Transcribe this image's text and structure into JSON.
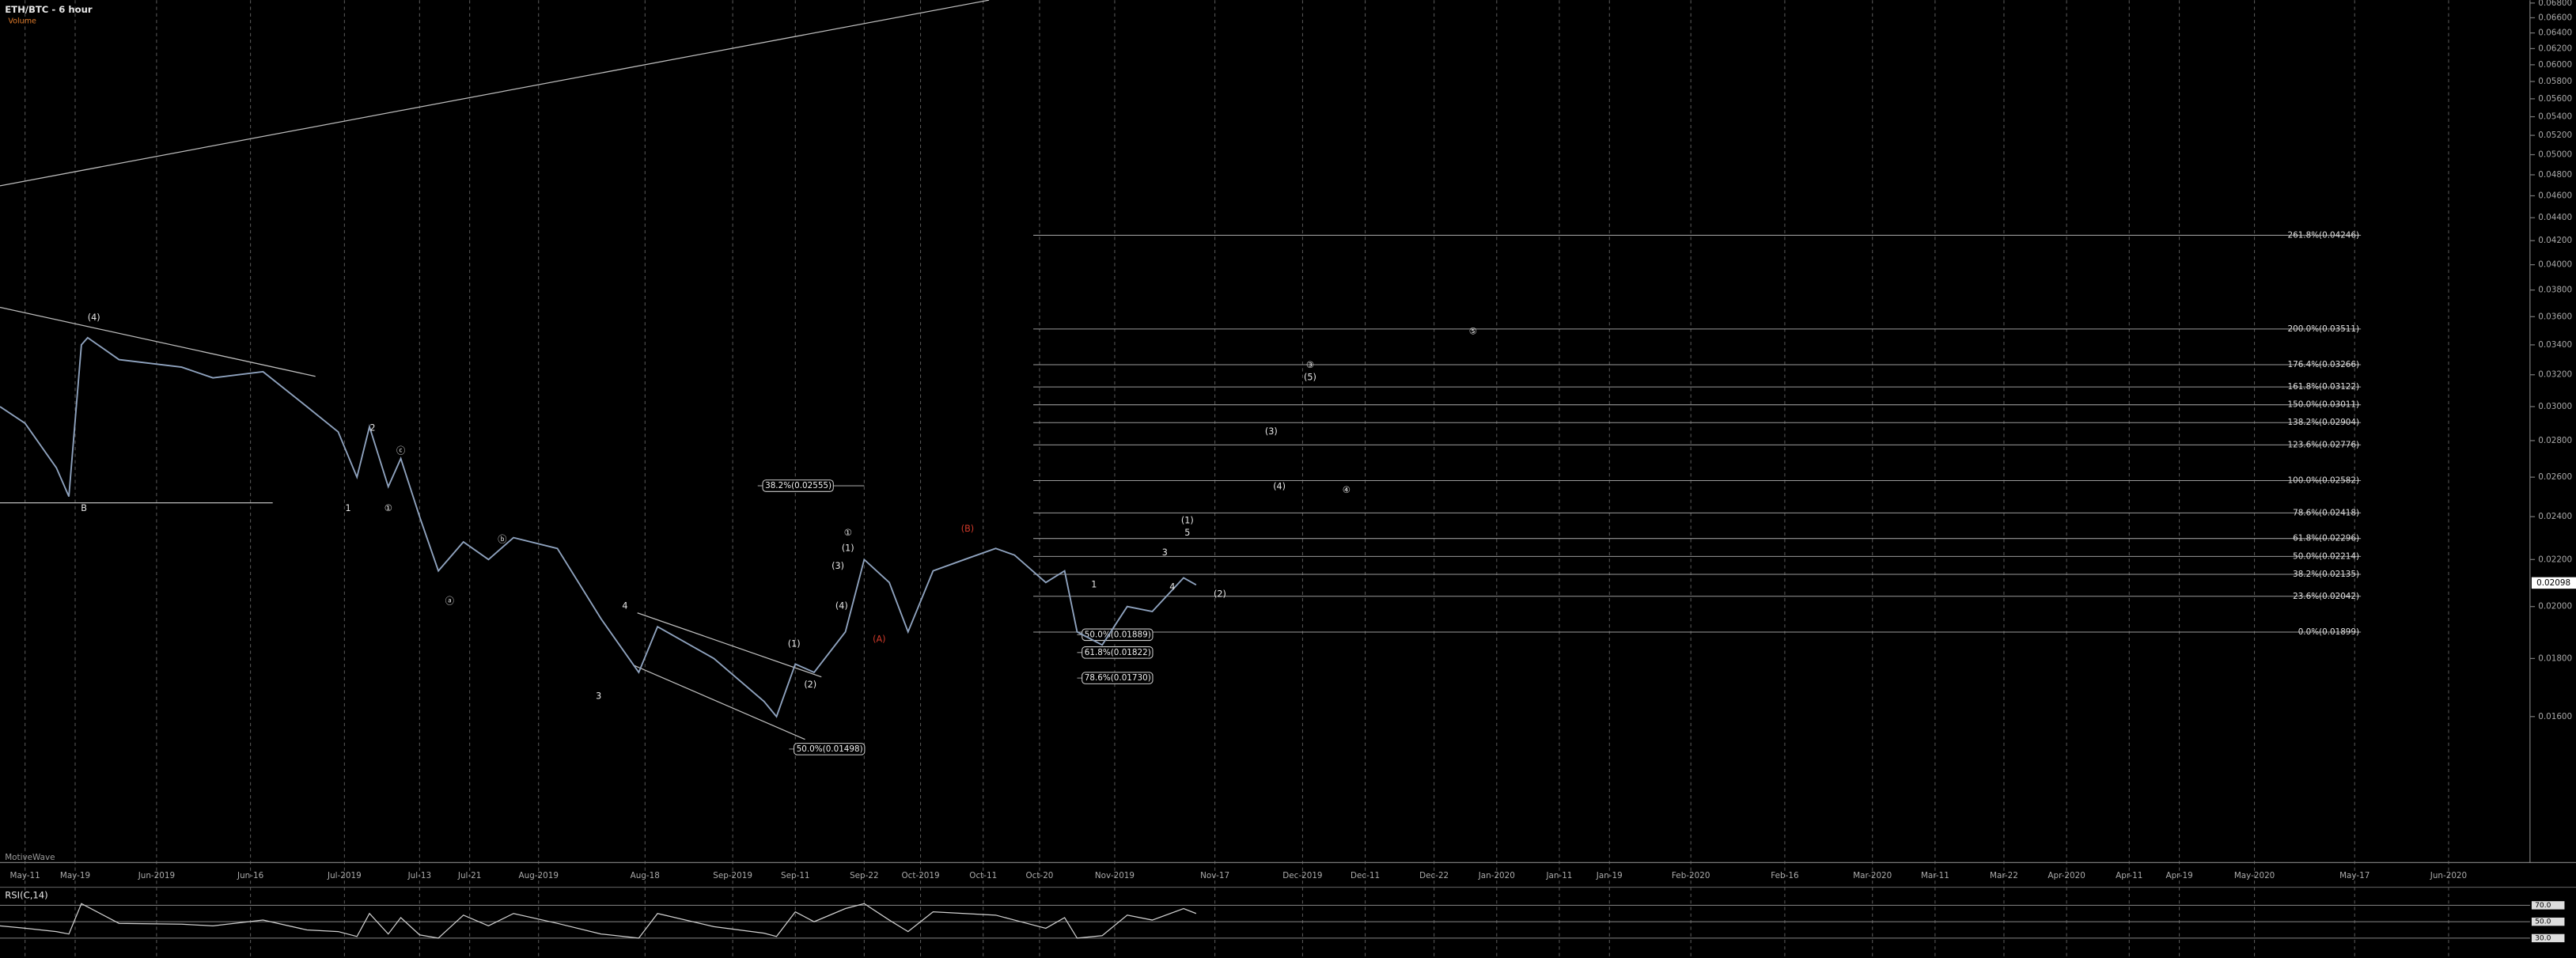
{
  "chart_data": {
    "type": "line",
    "title": "ETH/BTC - 6 hour",
    "subtitle": "Volume",
    "watermark": "MotiveWave",
    "log_scale": true,
    "grid": "x",
    "xlim": [
      -4,
      400
    ],
    "xticks": [
      {
        "value": 0,
        "label": "May-11"
      },
      {
        "value": 8,
        "label": "May-19"
      },
      {
        "value": 21,
        "label": "Jun-2019"
      },
      {
        "value": 36,
        "label": "Jun-16"
      },
      {
        "value": 51,
        "label": "Jul-2019"
      },
      {
        "value": 63,
        "label": "Jul-13"
      },
      {
        "value": 71,
        "label": "Jul-21"
      },
      {
        "value": 82,
        "label": "Aug-2019"
      },
      {
        "value": 99,
        "label": "Aug-18"
      },
      {
        "value": 113,
        "label": "Sep-2019"
      },
      {
        "value": 123,
        "label": "Sep-11"
      },
      {
        "value": 134,
        "label": "Sep-22"
      },
      {
        "value": 143,
        "label": "Oct-2019"
      },
      {
        "value": 153,
        "label": "Oct-11"
      },
      {
        "value": 162,
        "label": "Oct-20"
      },
      {
        "value": 174,
        "label": "Nov-2019"
      },
      {
        "value": 190,
        "label": "Nov-17"
      },
      {
        "value": 204,
        "label": "Dec-2019"
      },
      {
        "value": 214,
        "label": "Dec-11"
      },
      {
        "value": 225,
        "label": "Dec-22"
      },
      {
        "value": 235,
        "label": "Jan-2020"
      },
      {
        "value": 245,
        "label": "Jan-11"
      },
      {
        "value": 253,
        "label": "Jan-19"
      },
      {
        "value": 266,
        "label": "Feb-2020"
      },
      {
        "value": 281,
        "label": "Feb-16"
      },
      {
        "value": 295,
        "label": "Mar-2020"
      },
      {
        "value": 305,
        "label": "Mar-11"
      },
      {
        "value": 316,
        "label": "Mar-22"
      },
      {
        "value": 326,
        "label": "Apr-2020"
      },
      {
        "value": 336,
        "label": "Apr-11"
      },
      {
        "value": 344,
        "label": "Apr-19"
      },
      {
        "value": 356,
        "label": "May-2020"
      },
      {
        "value": 372,
        "label": "May-17"
      },
      {
        "value": 387,
        "label": "Jun-2020"
      }
    ],
    "ylim": [
      0.0119,
      0.0684
    ],
    "yticks": [
      {
        "value": 0.016,
        "label": "0.01600"
      },
      {
        "value": 0.018,
        "label": "0.01800"
      },
      {
        "value": 0.02,
        "label": "0.02000"
      },
      {
        "value": 0.022,
        "label": "0.02200"
      },
      {
        "value": 0.024,
        "label": "0.02400"
      },
      {
        "value": 0.026,
        "label": "0.02600"
      },
      {
        "value": 0.028,
        "label": "0.02800"
      },
      {
        "value": 0.03,
        "label": "0.03000"
      },
      {
        "value": 0.032,
        "label": "0.03200"
      },
      {
        "value": 0.034,
        "label": "0.03400"
      },
      {
        "value": 0.036,
        "label": "0.03600"
      },
      {
        "value": 0.038,
        "label": "0.03800"
      },
      {
        "value": 0.04,
        "label": "0.04000"
      },
      {
        "value": 0.042,
        "label": "0.04200"
      },
      {
        "value": 0.044,
        "label": "0.04400"
      },
      {
        "value": 0.046,
        "label": "0.04600"
      },
      {
        "value": 0.048,
        "label": "0.04800"
      },
      {
        "value": 0.05,
        "label": "0.05000"
      },
      {
        "value": 0.052,
        "label": "0.05200"
      },
      {
        "value": 0.054,
        "label": "0.05400"
      },
      {
        "value": 0.056,
        "label": "0.05600"
      },
      {
        "value": 0.058,
        "label": "0.05800"
      },
      {
        "value": 0.06,
        "label": "0.06000"
      },
      {
        "value": 0.062,
        "label": "0.06200"
      },
      {
        "value": 0.064,
        "label": "0.06400"
      },
      {
        "value": 0.066,
        "label": "0.06600"
      },
      {
        "value": 0.068,
        "label": "0.06800"
      }
    ],
    "x": [
      -4,
      0,
      5,
      7,
      9,
      10,
      15,
      25,
      30,
      38,
      45,
      50,
      53,
      55,
      58,
      60,
      63,
      66,
      70,
      74,
      78,
      85,
      92,
      98,
      101,
      110,
      118,
      120,
      123,
      126,
      131,
      134,
      138,
      141,
      145,
      150,
      155,
      158,
      163,
      166,
      168,
      172,
      176,
      180,
      185,
      187
    ],
    "series": [
      {
        "name": "ETH/BTC",
        "color": "#8fa3bf",
        "values": [
          0.03,
          0.029,
          0.0265,
          0.025,
          0.034,
          0.0345,
          0.033,
          0.0325,
          0.0318,
          0.0322,
          0.03,
          0.0285,
          0.026,
          0.0288,
          0.0255,
          0.027,
          0.024,
          0.0215,
          0.0228,
          0.022,
          0.023,
          0.0225,
          0.0195,
          0.0175,
          0.0192,
          0.018,
          0.0165,
          0.016,
          0.0178,
          0.0175,
          0.019,
          0.022,
          0.021,
          0.019,
          0.0215,
          0.022,
          0.0225,
          0.0222,
          0.021,
          0.0215,
          0.019,
          0.0185,
          0.02,
          0.0198,
          0.0212,
          0.0209
        ]
      }
    ],
    "last_price": {
      "value": 0.02098,
      "label": "0.02098"
    },
    "fib_levels": [
      {
        "label": "261.8%(0.04246)",
        "value": 0.04246
      },
      {
        "label": "200.0%(0.03511)",
        "value": 0.03511
      },
      {
        "label": "176.4%(0.03266)",
        "value": 0.03266
      },
      {
        "label": "161.8%(0.03122)",
        "value": 0.03122
      },
      {
        "label": "150.0%(0.03011)",
        "value": 0.03011
      },
      {
        "label": "138.2%(0.02904)",
        "value": 0.02904
      },
      {
        "label": "123.6%(0.02776)",
        "value": 0.02776
      },
      {
        "label": "100.0%(0.02582)",
        "value": 0.02582
      },
      {
        "label": "78.6%(0.02418)",
        "value": 0.02418
      },
      {
        "label": "61.8%(0.02296)",
        "value": 0.02296
      },
      {
        "label": "50.0%(0.02214)",
        "value": 0.02214
      },
      {
        "label": "38.2%(0.02135)",
        "value": 0.02135
      },
      {
        "label": "23.6%(0.02042)",
        "value": 0.02042
      },
      {
        "label": "0.0%(0.01899)",
        "value": 0.01899
      }
    ],
    "fib_start": 161,
    "fib_end": 373,
    "retracements": [
      {
        "label": "38.2%(0.02555)",
        "value": 0.02555,
        "x": [
          117,
          134
        ]
      },
      {
        "label": "50.0%(0.01498)",
        "value": 0.01498,
        "x": [
          122,
          134
        ]
      },
      {
        "label": "50.0%(0.01889)",
        "value": 0.01889,
        "x": [
          168,
          180
        ]
      },
      {
        "label": "61.8%(0.01822)",
        "value": 0.01822,
        "x": [
          168,
          180
        ]
      },
      {
        "label": "78.6%(0.01730)",
        "value": 0.0173,
        "x": [
          168,
          180
        ]
      }
    ],
    "wave_labels": [
      {
        "text": "(4)",
        "x": 11,
        "y": 0.0359
      },
      {
        "text": "B",
        "x": 9.4,
        "y": 0.0244
      },
      {
        "text": "2",
        "x": 55.5,
        "y": 0.0287
      },
      {
        "text": "1",
        "x": 51.6,
        "y": 0.0244
      },
      {
        "text": "ⓒ",
        "x": 60,
        "y": 0.0274
      },
      {
        "text": "①",
        "x": 58,
        "y": 0.0244
      },
      {
        "text": "ⓐ",
        "x": 67.8,
        "y": 0.0202
      },
      {
        "text": "ⓑ",
        "x": 76.2,
        "y": 0.0229
      },
      {
        "text": "3",
        "x": 91.6,
        "y": 0.01666
      },
      {
        "text": "4",
        "x": 95.8,
        "y": 0.02
      },
      {
        "text": "(1)",
        "x": 122.8,
        "y": 0.01852
      },
      {
        "text": "(2)",
        "x": 125.4,
        "y": 0.01705
      },
      {
        "text": "(3)",
        "x": 129.8,
        "y": 0.0217
      },
      {
        "text": "(4)",
        "x": 130.4,
        "y": 0.02
      },
      {
        "text": "(1)",
        "x": 131.4,
        "y": 0.0225
      },
      {
        "text": "①",
        "x": 131.4,
        "y": 0.0232
      },
      {
        "text": "(A)",
        "x": 136.4,
        "y": 0.0187
      },
      {
        "text": "(B)",
        "x": 150.5,
        "y": 0.0234
      },
      {
        "text": "1",
        "x": 170.7,
        "y": 0.0209
      },
      {
        "text": "3",
        "x": 182,
        "y": 0.0223
      },
      {
        "text": "4",
        "x": 183.2,
        "y": 0.0208
      },
      {
        "text": "5",
        "x": 185.6,
        "y": 0.0232
      },
      {
        "text": "(1)",
        "x": 185.6,
        "y": 0.0238
      },
      {
        "text": "(2)",
        "x": 190.8,
        "y": 0.0205
      },
      {
        "text": "(3)",
        "x": 199,
        "y": 0.0285
      },
      {
        "text": "(4)",
        "x": 200.3,
        "y": 0.0255
      },
      {
        "text": "(5)",
        "x": 205.2,
        "y": 0.0318
      },
      {
        "text": "③",
        "x": 205.2,
        "y": 0.0326
      },
      {
        "text": "④",
        "x": 211,
        "y": 0.0253
      },
      {
        "text": "⑤",
        "x": 231.2,
        "y": 0.0349
      }
    ],
    "rsi": {
      "name": "RSI(C,14)",
      "color": "#d0d0d0",
      "ylim": [
        10,
        90
      ],
      "yticks": [
        {
          "value": 30,
          "label": "30.0"
        },
        {
          "value": 50,
          "label": "50.0"
        },
        {
          "value": 70,
          "label": "70.0"
        }
      ],
      "values": [
        45,
        42,
        38,
        35,
        72,
        68,
        48,
        47,
        45,
        52,
        40,
        38,
        32,
        60,
        35,
        55,
        34,
        30,
        58,
        45,
        60,
        48,
        35,
        30,
        60,
        44,
        36,
        32,
        62,
        50,
        66,
        72,
        52,
        38,
        62,
        60,
        58,
        52,
        42,
        55,
        30,
        33,
        58,
        52,
        66,
        60
      ]
    }
  }
}
